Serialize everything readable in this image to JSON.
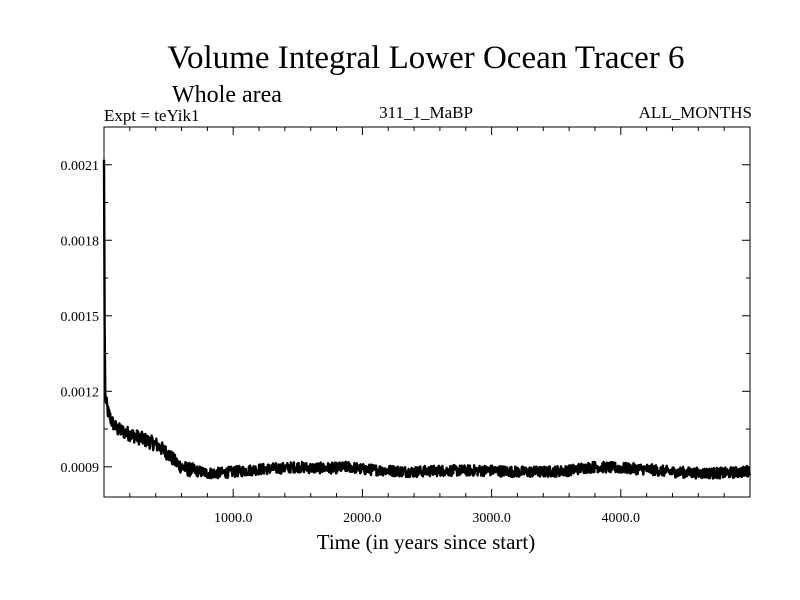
{
  "chart_data": {
    "type": "line",
    "title": "Volume Integral Lower Ocean Tracer 6",
    "subtitle": "Whole area",
    "expt_label": "Expt = teYik1",
    "run_label": "311_1_MaBP",
    "months_label": "ALL_MONTHS",
    "xlabel": "Time (in years since start)",
    "ylabel": "",
    "xlim": [
      0,
      5000
    ],
    "ylim": [
      0.00078,
      0.00225
    ],
    "x_ticks": [
      1000,
      2000,
      3000,
      4000
    ],
    "x_tick_labels": [
      "1000.0",
      "2000.0",
      "3000.0",
      "4000.0"
    ],
    "y_ticks": [
      0.0009,
      0.0012,
      0.0015,
      0.0018,
      0.0021
    ],
    "y_tick_labels": [
      "0.0009",
      "0.0012",
      "0.0015",
      "0.0018",
      "0.0021"
    ],
    "grid": false,
    "series": [
      {
        "x": [
          0,
          5,
          10,
          30,
          60,
          100,
          150,
          200,
          300,
          400,
          500,
          550,
          600,
          650,
          700,
          800,
          900,
          1000,
          1200,
          1400,
          1500,
          1600,
          1800,
          1900,
          2000,
          2200,
          2400,
          2600,
          2800,
          3000,
          3200,
          3400,
          3600,
          3700,
          3800,
          4000,
          4200,
          4400,
          4600,
          4800,
          4950,
          5000
        ],
        "y": [
          0.00212,
          0.00145,
          0.00118,
          0.00112,
          0.00108,
          0.00105,
          0.00104,
          0.00103,
          0.00101,
          0.00099,
          0.00095,
          0.00092,
          0.0009,
          0.00089,
          0.000885,
          0.000875,
          0.000875,
          0.00088,
          0.00089,
          0.000895,
          0.0009,
          0.000895,
          0.000895,
          0.0009,
          0.00089,
          0.000885,
          0.00088,
          0.000885,
          0.000885,
          0.000885,
          0.00088,
          0.00088,
          0.000885,
          0.000895,
          0.0009,
          0.000895,
          0.00089,
          0.00088,
          0.000875,
          0.000875,
          0.00088,
          0.000885
        ],
        "color": "#000000"
      }
    ]
  }
}
